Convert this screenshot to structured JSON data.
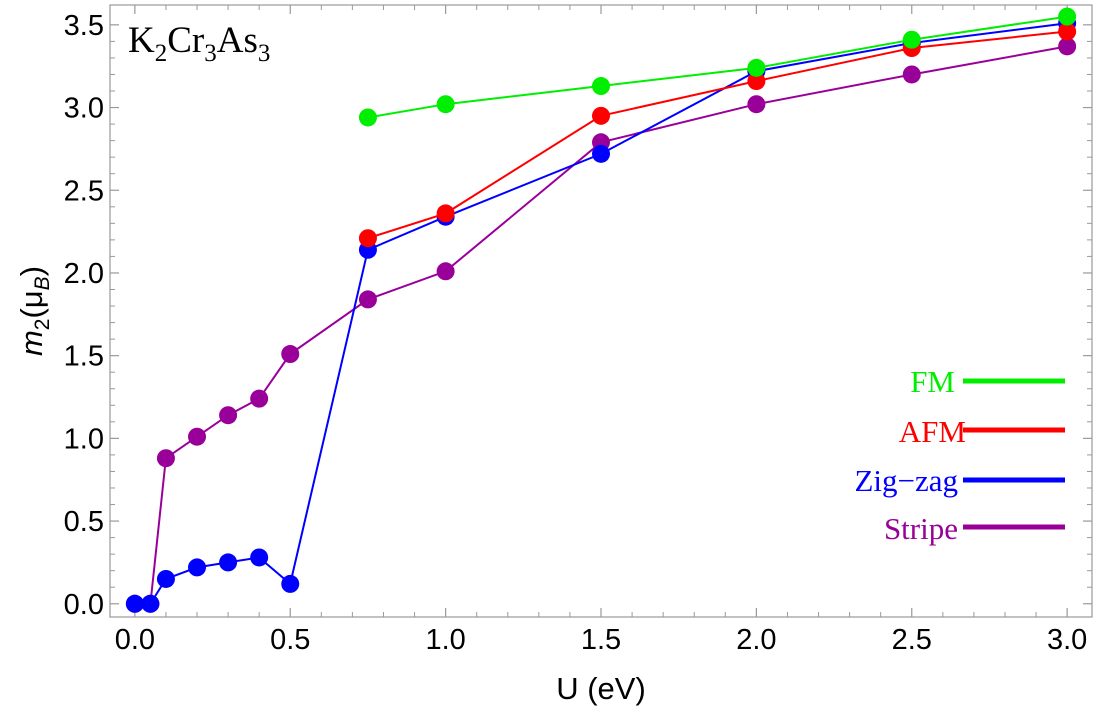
{
  "chart_data": {
    "type": "line",
    "title": "K2Cr3As3",
    "title_parts": {
      "k": "K",
      "k_sub": "2",
      "cr": "Cr",
      "cr_sub": "3",
      "as": "As",
      "as_sub": "3"
    },
    "xlabel": "U (eV)",
    "ylabel": {
      "m": "m",
      "m_sub": "2",
      "paren_open": "(",
      "mu": "μ",
      "mu_sub": "B",
      "paren_close": ")"
    },
    "xlim": [
      -0.08,
      3.08
    ],
    "ylim": [
      -0.08,
      3.62
    ],
    "x_ticks": [
      0.0,
      0.5,
      1.0,
      1.5,
      2.0,
      2.5,
      3.0
    ],
    "x_tick_labels": [
      "0.0",
      "0.5",
      "1.0",
      "1.5",
      "2.0",
      "2.5",
      "3.0"
    ],
    "y_ticks": [
      0.0,
      0.5,
      1.0,
      1.5,
      2.0,
      2.5,
      3.0,
      3.5
    ],
    "y_tick_labels": [
      "0.0",
      "0.5",
      "1.0",
      "1.5",
      "2.0",
      "2.5",
      "3.0",
      "3.5"
    ],
    "legend_position": "right",
    "series": [
      {
        "name": "FM",
        "color": "#00ee00",
        "x": [
          0.75,
          1.0,
          1.5,
          2.0,
          2.5,
          3.0
        ],
        "y": [
          2.94,
          3.02,
          3.13,
          3.24,
          3.41,
          3.55
        ]
      },
      {
        "name": "AFM",
        "color": "#ff0000",
        "x": [
          0.75,
          1.0,
          1.5,
          2.0,
          2.5,
          3.0
        ],
        "y": [
          2.21,
          2.36,
          2.95,
          3.16,
          3.36,
          3.46
        ]
      },
      {
        "name": "Zig−zag",
        "color": "#0000ff",
        "x": [
          0.0,
          0.05,
          0.1,
          0.2,
          0.3,
          0.4,
          0.5,
          0.75,
          1.0,
          1.5,
          2.0,
          2.5,
          3.0
        ],
        "y": [
          0.0,
          0.0,
          0.15,
          0.22,
          0.25,
          0.28,
          0.12,
          2.14,
          2.34,
          2.72,
          3.22,
          3.39,
          3.51
        ]
      },
      {
        "name": "Stripe",
        "color": "#990099",
        "x": [
          0.0,
          0.05,
          0.1,
          0.2,
          0.3,
          0.4,
          0.5,
          0.75,
          1.0,
          1.5,
          2.0,
          2.5,
          3.0
        ],
        "y": [
          0.0,
          0.0,
          0.88,
          1.01,
          1.14,
          1.24,
          1.51,
          1.84,
          2.01,
          2.79,
          3.02,
          3.2,
          3.37
        ]
      }
    ]
  }
}
